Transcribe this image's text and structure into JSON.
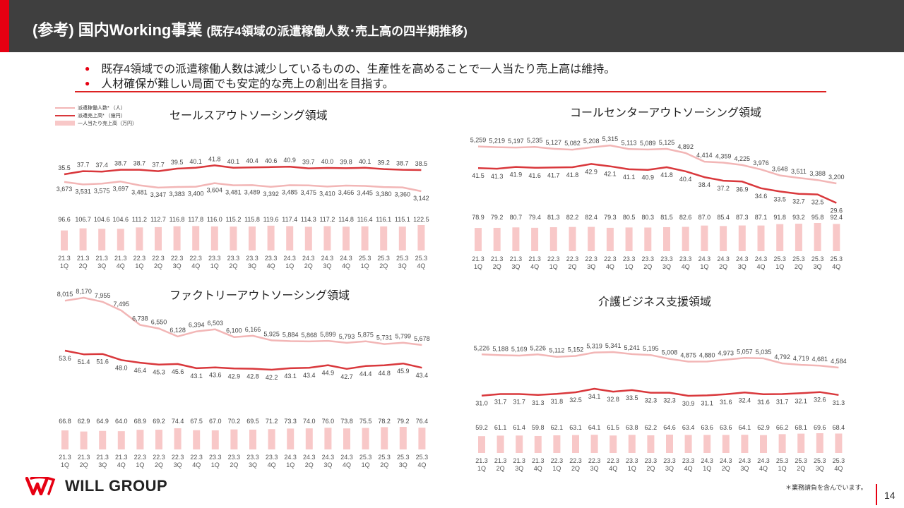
{
  "header": {
    "title_main": "(参考) 国内Working事業",
    "title_sub": "(既存4領域の派遣稼働人数･売上高の四半期推移)"
  },
  "bullets": [
    "既存4領域での派遣稼働人数は減少しているものの、生産性を高めることで一人当たり売上高は維持。",
    "人材確保が難しい局面でも安定的な売上の創出を目指す。"
  ],
  "legend": {
    "headcount": "派遣稼働人数* （人）",
    "sales": "派遣売上高* （億円）",
    "per_person": "一人当たり売上高（万円）"
  },
  "colors": {
    "headcount_line": "#f2b6b6",
    "sales_line": "#d9383c",
    "bar": "#f8c8c8",
    "accent": "#e60012"
  },
  "chart_data": [
    {
      "type": "bar+line",
      "title": "セールスアウトソーシング領域",
      "categories": [
        "21.3\n1Q",
        "21.3\n2Q",
        "21.3\n3Q",
        "21.3\n4Q",
        "22.3\n1Q",
        "22.3\n2Q",
        "22.3\n3Q",
        "22.3\n4Q",
        "23.3\n1Q",
        "23.3\n2Q",
        "23.3\n3Q",
        "23.3\n4Q",
        "24.3\n1Q",
        "24.3\n2Q",
        "24.3\n3Q",
        "24.3\n4Q",
        "25.3\n1Q",
        "25.3\n2Q",
        "25.3\n3Q",
        "25.3\n4Q"
      ],
      "headcount": [
        3673,
        3531,
        3575,
        3697,
        3481,
        3347,
        3383,
        3400,
        3604,
        3481,
        3489,
        3392,
        3485,
        3475,
        3410,
        3466,
        3445,
        3380,
        3360,
        3142
      ],
      "headcount_labels": [
        "3,673",
        "3,531",
        "3,575",
        "3,697",
        "3,481",
        "3,347",
        "3,383",
        "3,400",
        "3,604",
        "3,481",
        "3,489",
        "3,392",
        "3,485",
        "3,475",
        "3,410",
        "3,466",
        "3,445",
        "3,380",
        "3,360",
        "3,142"
      ],
      "sales": [
        35.5,
        37.7,
        37.4,
        38.7,
        38.7,
        37.7,
        39.5,
        40.1,
        41.8,
        40.1,
        40.4,
        40.6,
        40.9,
        39.7,
        40.0,
        39.8,
        40.1,
        39.2,
        38.7,
        38.5
      ],
      "sales_labels": [
        "35.5",
        "37.7",
        "37.4",
        "38.7",
        "38.7",
        "37.7",
        "39.5",
        "40.1",
        "41.8",
        "40.1",
        "40.4",
        "40.6",
        "40.9",
        "39.7",
        "40.0",
        "39.8",
        "40.1",
        "39.2",
        "38.7",
        "38.5"
      ],
      "per_person": [
        96.6,
        106.7,
        104.6,
        104.6,
        111.2,
        112.7,
        116.8,
        117.8,
        116.0,
        115.2,
        115.8,
        119.6,
        117.4,
        114.3,
        117.2,
        114.8,
        116.4,
        116.1,
        115.1,
        122.5
      ],
      "per_person_labels": [
        "96.6",
        "106.7",
        "104.6",
        "104.6",
        "111.2",
        "112.7",
        "116.8",
        "117.8",
        "116.0",
        "115.2",
        "115.8",
        "119.6",
        "117.4",
        "114.3",
        "117.2",
        "114.8",
        "116.4",
        "116.1",
        "115.1",
        "122.5"
      ]
    },
    {
      "type": "bar+line",
      "title": "コールセンターアウトソーシング領域",
      "categories": [
        "21.3\n1Q",
        "21.3\n2Q",
        "21.3\n3Q",
        "21.3\n4Q",
        "22.3\n1Q",
        "22.3\n2Q",
        "22.3\n3Q",
        "22.3\n4Q",
        "23.3\n1Q",
        "23.3\n2Q",
        "23.3\n3Q",
        "23.3\n4Q",
        "24.3\n1Q",
        "24.3\n2Q",
        "24.3\n3Q",
        "24.3\n4Q",
        "25.3\n1Q",
        "25.3\n2Q",
        "25.3\n3Q",
        "25.3\n4Q"
      ],
      "headcount": [
        5259,
        5219,
        5197,
        5235,
        5127,
        5082,
        5208,
        5315,
        5113,
        5089,
        5125,
        4892,
        4414,
        4359,
        4225,
        3976,
        3648,
        3511,
        3388,
        3200
      ],
      "headcount_labels": [
        "5,259",
        "5,219",
        "5,197",
        "5,235",
        "5,127",
        "5,082",
        "5,208",
        "5,315",
        "5,113",
        "5,089",
        "5,125",
        "4,892",
        "4,414",
        "4,359",
        "4,225",
        "3,976",
        "3,648",
        "3,511",
        "3,388",
        "3,200"
      ],
      "sales": [
        41.5,
        41.3,
        41.9,
        41.6,
        41.7,
        41.8,
        42.9,
        42.1,
        41.1,
        40.9,
        41.8,
        40.4,
        38.4,
        37.2,
        36.9,
        34.6,
        33.5,
        32.7,
        32.5,
        29.6
      ],
      "sales_labels": [
        "41.5",
        "41.3",
        "41.9",
        "41.6",
        "41.7",
        "41.8",
        "42.9",
        "42.1",
        "41.1",
        "40.9",
        "41.8",
        "40.4",
        "38.4",
        "37.2",
        "36.9",
        "34.6",
        "33.5",
        "32.7",
        "32.5",
        "29.6"
      ],
      "per_person": [
        78.9,
        79.2,
        80.7,
        79.4,
        81.3,
        82.2,
        82.4,
        79.3,
        80.5,
        80.3,
        81.5,
        82.6,
        87.0,
        85.4,
        87.3,
        87.1,
        91.8,
        93.2,
        95.8,
        92.4
      ],
      "per_person_labels": [
        "78.9",
        "79.2",
        "80.7",
        "79.4",
        "81.3",
        "82.2",
        "82.4",
        "79.3",
        "80.5",
        "80.3",
        "81.5",
        "82.6",
        "87.0",
        "85.4",
        "87.3",
        "87.1",
        "91.8",
        "93.2",
        "95.8",
        "92.4"
      ]
    },
    {
      "type": "bar+line",
      "title": "ファクトリーアウトソーシング領域",
      "categories": [
        "21.3\n1Q",
        "21.3\n2Q",
        "21.3\n3Q",
        "21.3\n4Q",
        "22.3\n1Q",
        "22.3\n2Q",
        "22.3\n3Q",
        "22.3\n4Q",
        "23.3\n1Q",
        "23.3\n2Q",
        "23.3\n3Q",
        "23.3\n4Q",
        "24.3\n1Q",
        "24.3\n2Q",
        "24.3\n3Q",
        "24.3\n4Q",
        "25.3\n1Q",
        "25.3\n2Q",
        "25.3\n3Q",
        "25.3\n4Q"
      ],
      "headcount": [
        8015,
        8170,
        7955,
        7495,
        6738,
        6550,
        6128,
        6394,
        6503,
        6100,
        6166,
        5925,
        5884,
        5868,
        5899,
        5793,
        5875,
        5731,
        5799,
        5678
      ],
      "headcount_labels": [
        "8,015",
        "8,170",
        "7,955",
        "7,495",
        "6,738",
        "6,550",
        "6,128",
        "6,394",
        "6,503",
        "6,100",
        "6,166",
        "5,925",
        "5,884",
        "5,868",
        "5,899",
        "5,793",
        "5,875",
        "5,731",
        "5,799",
        "5,678"
      ],
      "sales": [
        53.6,
        51.4,
        51.6,
        48.0,
        46.4,
        45.3,
        45.6,
        43.1,
        43.6,
        42.9,
        42.8,
        42.2,
        43.1,
        43.4,
        44.9,
        42.7,
        44.4,
        44.8,
        45.9,
        43.4
      ],
      "sales_labels": [
        "53.6",
        "51.4",
        "51.6",
        "48.0",
        "46.4",
        "45.3",
        "45.6",
        "43.1",
        "43.6",
        "42.9",
        "42.8",
        "42.2",
        "43.1",
        "43.4",
        "44.9",
        "42.7",
        "44.4",
        "44.8",
        "45.9",
        "43.4"
      ],
      "per_person": [
        66.8,
        62.9,
        64.9,
        64.0,
        68.9,
        69.2,
        74.4,
        67.5,
        67.0,
        70.2,
        69.5,
        71.2,
        73.3,
        74.0,
        76.0,
        73.8,
        75.5,
        78.2,
        79.2,
        76.4
      ],
      "per_person_labels": [
        "66.8",
        "62.9",
        "64.9",
        "64.0",
        "68.9",
        "69.2",
        "74.4",
        "67.5",
        "67.0",
        "70.2",
        "69.5",
        "71.2",
        "73.3",
        "74.0",
        "76.0",
        "73.8",
        "75.5",
        "78.2",
        "79.2",
        "76.4"
      ]
    },
    {
      "type": "bar+line",
      "title": "介護ビジネス支援領域",
      "categories": [
        "21.3\n1Q",
        "21.3\n2Q",
        "21.3\n3Q",
        "21.3\n4Q",
        "22.3\n1Q",
        "22.3\n2Q",
        "22.3\n3Q",
        "22.3\n4Q",
        "23.3\n1Q",
        "23.3\n2Q",
        "23.3\n3Q",
        "23.3\n4Q",
        "24.3\n1Q",
        "24.3\n2Q",
        "24.3\n3Q",
        "24.3\n4Q",
        "25.3\n1Q",
        "25.3\n2Q",
        "25.3\n3Q",
        "25.3\n4Q"
      ],
      "headcount": [
        5226,
        5188,
        5169,
        5226,
        5112,
        5152,
        5319,
        5341,
        5241,
        5195,
        5008,
        4875,
        4880,
        4973,
        5057,
        5035,
        4792,
        4719,
        4681,
        4584
      ],
      "headcount_labels": [
        "5,226",
        "5,188",
        "5,169",
        "5,226",
        "5,112",
        "5,152",
        "5,319",
        "5,341",
        "5,241",
        "5,195",
        "5,008",
        "4,875",
        "4,880",
        "4,973",
        "5,057",
        "5,035",
        "4,792",
        "4,719",
        "4,681",
        "4,584"
      ],
      "sales": [
        31.0,
        31.7,
        31.7,
        31.3,
        31.8,
        32.5,
        34.1,
        32.8,
        33.5,
        32.3,
        32.3,
        30.9,
        31.1,
        31.6,
        32.4,
        31.6,
        31.7,
        32.1,
        32.6,
        31.3
      ],
      "sales_labels": [
        "31.0",
        "31.7",
        "31.7",
        "31.3",
        "31.8",
        "32.5",
        "34.1",
        "32.8",
        "33.5",
        "32.3",
        "32.3",
        "30.9",
        "31.1",
        "31.6",
        "32.4",
        "31.6",
        "31.7",
        "32.1",
        "32.6",
        "31.3"
      ],
      "per_person": [
        59.2,
        61.1,
        61.4,
        59.8,
        62.1,
        63.1,
        64.1,
        61.5,
        63.8,
        62.2,
        64.6,
        63.4,
        63.6,
        63.6,
        64.1,
        62.9,
        66.2,
        68.1,
        69.6,
        68.4
      ],
      "per_person_labels": [
        "59.2",
        "61.1",
        "61.4",
        "59.8",
        "62.1",
        "63.1",
        "64.1",
        "61.5",
        "63.8",
        "62.2",
        "64.6",
        "63.4",
        "63.6",
        "63.6",
        "64.1",
        "62.9",
        "66.2",
        "68.1",
        "69.6",
        "68.4"
      ]
    }
  ],
  "logo_text": "WILL GROUP",
  "footnote": "＊業務請負を含んでいます。",
  "page_number": "14"
}
